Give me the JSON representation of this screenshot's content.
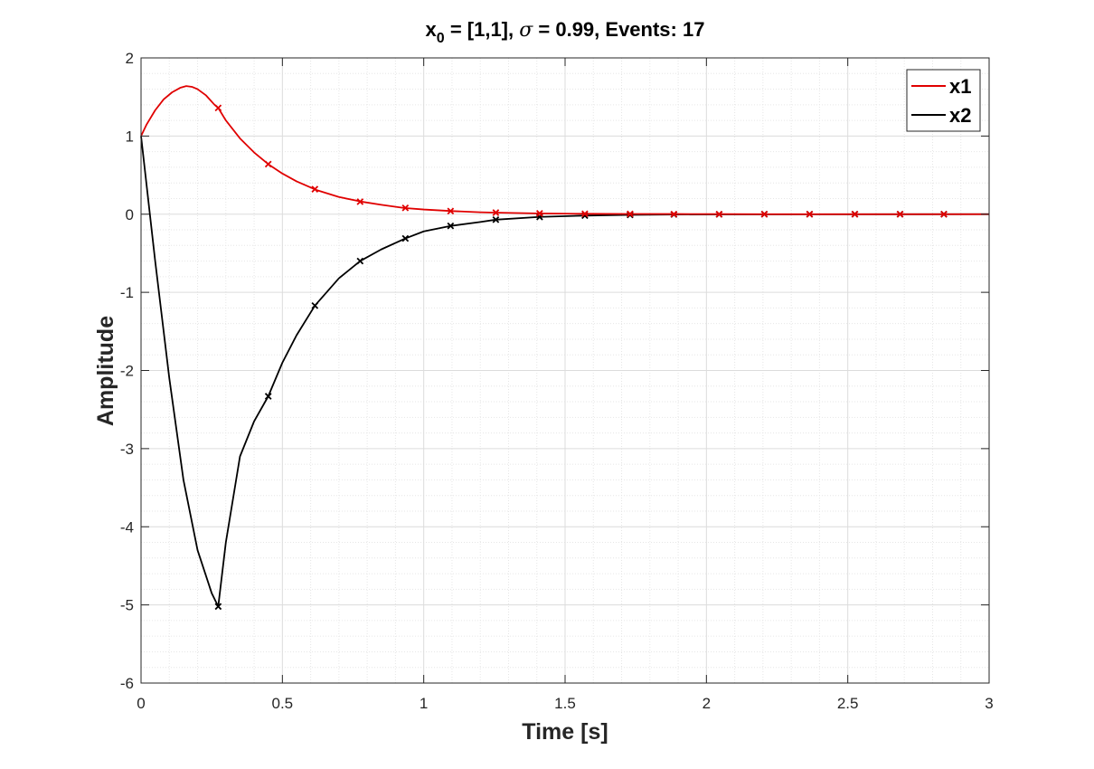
{
  "chart_data": {
    "type": "line",
    "title": {
      "main": "x",
      "subscript": "0",
      "rest": " = [1,1],   ",
      "sigma_symbol": "σ",
      "sigma_text": " = 0.99,   Events: 17"
    },
    "xlabel": "Time [s]",
    "ylabel": "Amplitude",
    "xlim": [
      0,
      3
    ],
    "ylim": [
      -6,
      2
    ],
    "xticks": [
      0,
      0.5,
      1,
      1.5,
      2,
      2.5,
      3
    ],
    "xtick_labels": [
      "0",
      "0.5",
      "1",
      "1.5",
      "2",
      "2.5",
      "3"
    ],
    "yticks": [
      -6,
      -5,
      -4,
      -3,
      -2,
      -1,
      0,
      1,
      2
    ],
    "ytick_labels": [
      "-6",
      "-5",
      "-4",
      "-3",
      "-2",
      "-1",
      "0",
      "1",
      "2"
    ],
    "grid": true,
    "minor_grid": true,
    "legend_position": "top-right",
    "series": [
      {
        "name": "x1",
        "color": "#e00000",
        "x": [
          0,
          0.02,
          0.05,
          0.08,
          0.11,
          0.14,
          0.16,
          0.18,
          0.2,
          0.23,
          0.26,
          0.273,
          0.3,
          0.35,
          0.4,
          0.45,
          0.5,
          0.55,
          0.62,
          0.7,
          0.78,
          0.85,
          0.93,
          1.0,
          1.1,
          1.2,
          1.25,
          1.4,
          1.57,
          1.73,
          1.89,
          2.05,
          2.2,
          3.0
        ],
        "y": [
          1.0,
          1.15,
          1.33,
          1.47,
          1.56,
          1.62,
          1.64,
          1.63,
          1.6,
          1.52,
          1.4,
          1.36,
          1.2,
          0.97,
          0.79,
          0.64,
          0.52,
          0.42,
          0.31,
          0.22,
          0.16,
          0.12,
          0.08,
          0.06,
          0.04,
          0.025,
          0.02,
          0.01,
          0.005,
          0.003,
          0.002,
          0.001,
          0.0,
          0.0
        ],
        "events_x": [
          0.273,
          0.45,
          0.615,
          0.775,
          0.935,
          1.095,
          1.255,
          1.41,
          1.57,
          1.73,
          1.885,
          2.045,
          2.205,
          2.365,
          2.525,
          2.685,
          2.84
        ],
        "events_y": [
          1.36,
          0.64,
          0.32,
          0.16,
          0.08,
          0.04,
          0.02,
          0.01,
          0.005,
          0.003,
          0.001,
          0.0,
          0.0,
          0.0,
          0.0,
          0.0,
          0.0
        ]
      },
      {
        "name": "x2",
        "color": "#000000",
        "x": [
          0,
          0.05,
          0.1,
          0.15,
          0.2,
          0.25,
          0.273,
          0.3,
          0.35,
          0.4,
          0.45,
          0.5,
          0.55,
          0.615,
          0.7,
          0.775,
          0.85,
          0.935,
          1.0,
          1.095,
          1.2,
          1.255,
          1.41,
          1.57,
          1.73,
          1.885,
          2.045,
          3.0
        ],
        "y": [
          1.0,
          -0.6,
          -2.1,
          -3.4,
          -4.3,
          -4.85,
          -5.02,
          -4.2,
          -3.1,
          -2.65,
          -2.33,
          -1.9,
          -1.55,
          -1.17,
          -0.82,
          -0.6,
          -0.45,
          -0.31,
          -0.22,
          -0.15,
          -0.1,
          -0.07,
          -0.035,
          -0.018,
          -0.009,
          -0.004,
          -0.002,
          0.0
        ],
        "events_x": [
          0.273,
          0.45,
          0.615,
          0.775,
          0.935,
          1.095,
          1.255,
          1.41,
          1.57,
          1.73,
          1.885,
          2.045,
          2.205,
          2.365,
          2.525,
          2.685,
          2.84
        ],
        "events_y": [
          -5.02,
          -2.33,
          -1.17,
          -0.6,
          -0.31,
          -0.15,
          -0.07,
          -0.035,
          -0.018,
          -0.009,
          -0.004,
          -0.002,
          0.0,
          0.0,
          0.0,
          0.0,
          0.0
        ]
      }
    ]
  }
}
